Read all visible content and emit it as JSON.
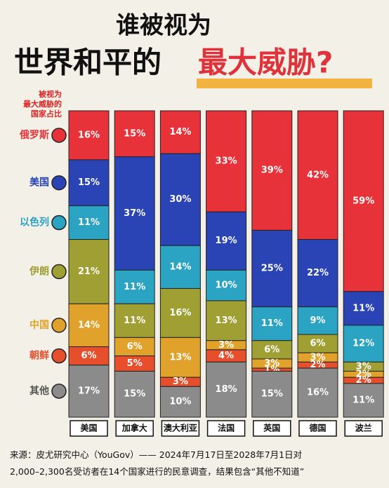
{
  "chart_data": {
    "type": "stacked_bar",
    "title_line1": "谁被视为",
    "title_line2": "世界和平的",
    "title_highlight": "最大威胁?",
    "legend_title": [
      "被视为",
      "最大威胁的",
      "国家占比"
    ],
    "categories": [
      "美国",
      "加拿大",
      "澳大利亚",
      "法国",
      "英国",
      "德国",
      "波兰"
    ],
    "ylim": [
      0,
      100
    ],
    "series": [
      {
        "name": "俄罗斯",
        "color": "#e8323a",
        "values": [
          16,
          15,
          14,
          33,
          39,
          42,
          59
        ],
        "value_labels": [
          "16%",
          "15%",
          "14%",
          "33%",
          "39%",
          "42%",
          "59%"
        ]
      },
      {
        "name": "美国",
        "color": "#2a44b5",
        "values": [
          15,
          37,
          30,
          19,
          25,
          22,
          11
        ],
        "value_labels": [
          "15%",
          "37%",
          "30%",
          "19%",
          "25%",
          "22%",
          "11%"
        ]
      },
      {
        "name": "以色列",
        "color": "#2ba3c2",
        "values": [
          11,
          11,
          14,
          10,
          11,
          9,
          12
        ],
        "value_labels": [
          "11%",
          "11%",
          "14%",
          "10%",
          "11%",
          "9%",
          "12%"
        ]
      },
      {
        "name": "伊朗",
        "color": "#a09f33",
        "values": [
          21,
          11,
          16,
          13,
          6,
          6,
          3
        ],
        "value_labels": [
          "21%",
          "11%",
          "16%",
          "13%",
          "6%",
          "6%",
          "3%"
        ]
      },
      {
        "name": "中国",
        "color": "#e0a22b",
        "values": [
          14,
          6,
          13,
          3,
          3,
          3,
          2
        ],
        "value_labels": [
          "14%",
          "6%",
          "13%",
          "3%",
          "3%",
          "3%",
          "2%"
        ]
      },
      {
        "name": "朝鲜",
        "color": "#e64e2c",
        "values": [
          6,
          5,
          3,
          4,
          1,
          2,
          2
        ],
        "value_labels": [
          "6%",
          "5%",
          "3%",
          "4%",
          "1%",
          "2%",
          "2%"
        ]
      },
      {
        "name": "其他",
        "color": "#8b8b8b",
        "values": [
          17,
          15,
          10,
          18,
          15,
          16,
          11
        ],
        "value_labels": [
          "17%",
          "15%",
          "10%",
          "18%",
          "15%",
          "16%",
          "11%"
        ]
      }
    ],
    "source": [
      "来源：皮尤研究中心（YouGov）—— 2024年7月17日至2028年7月1日对",
      "2,000–2,300名受访者在14个国家进行的民意调查，结果包含“其他不知道”"
    ]
  }
}
